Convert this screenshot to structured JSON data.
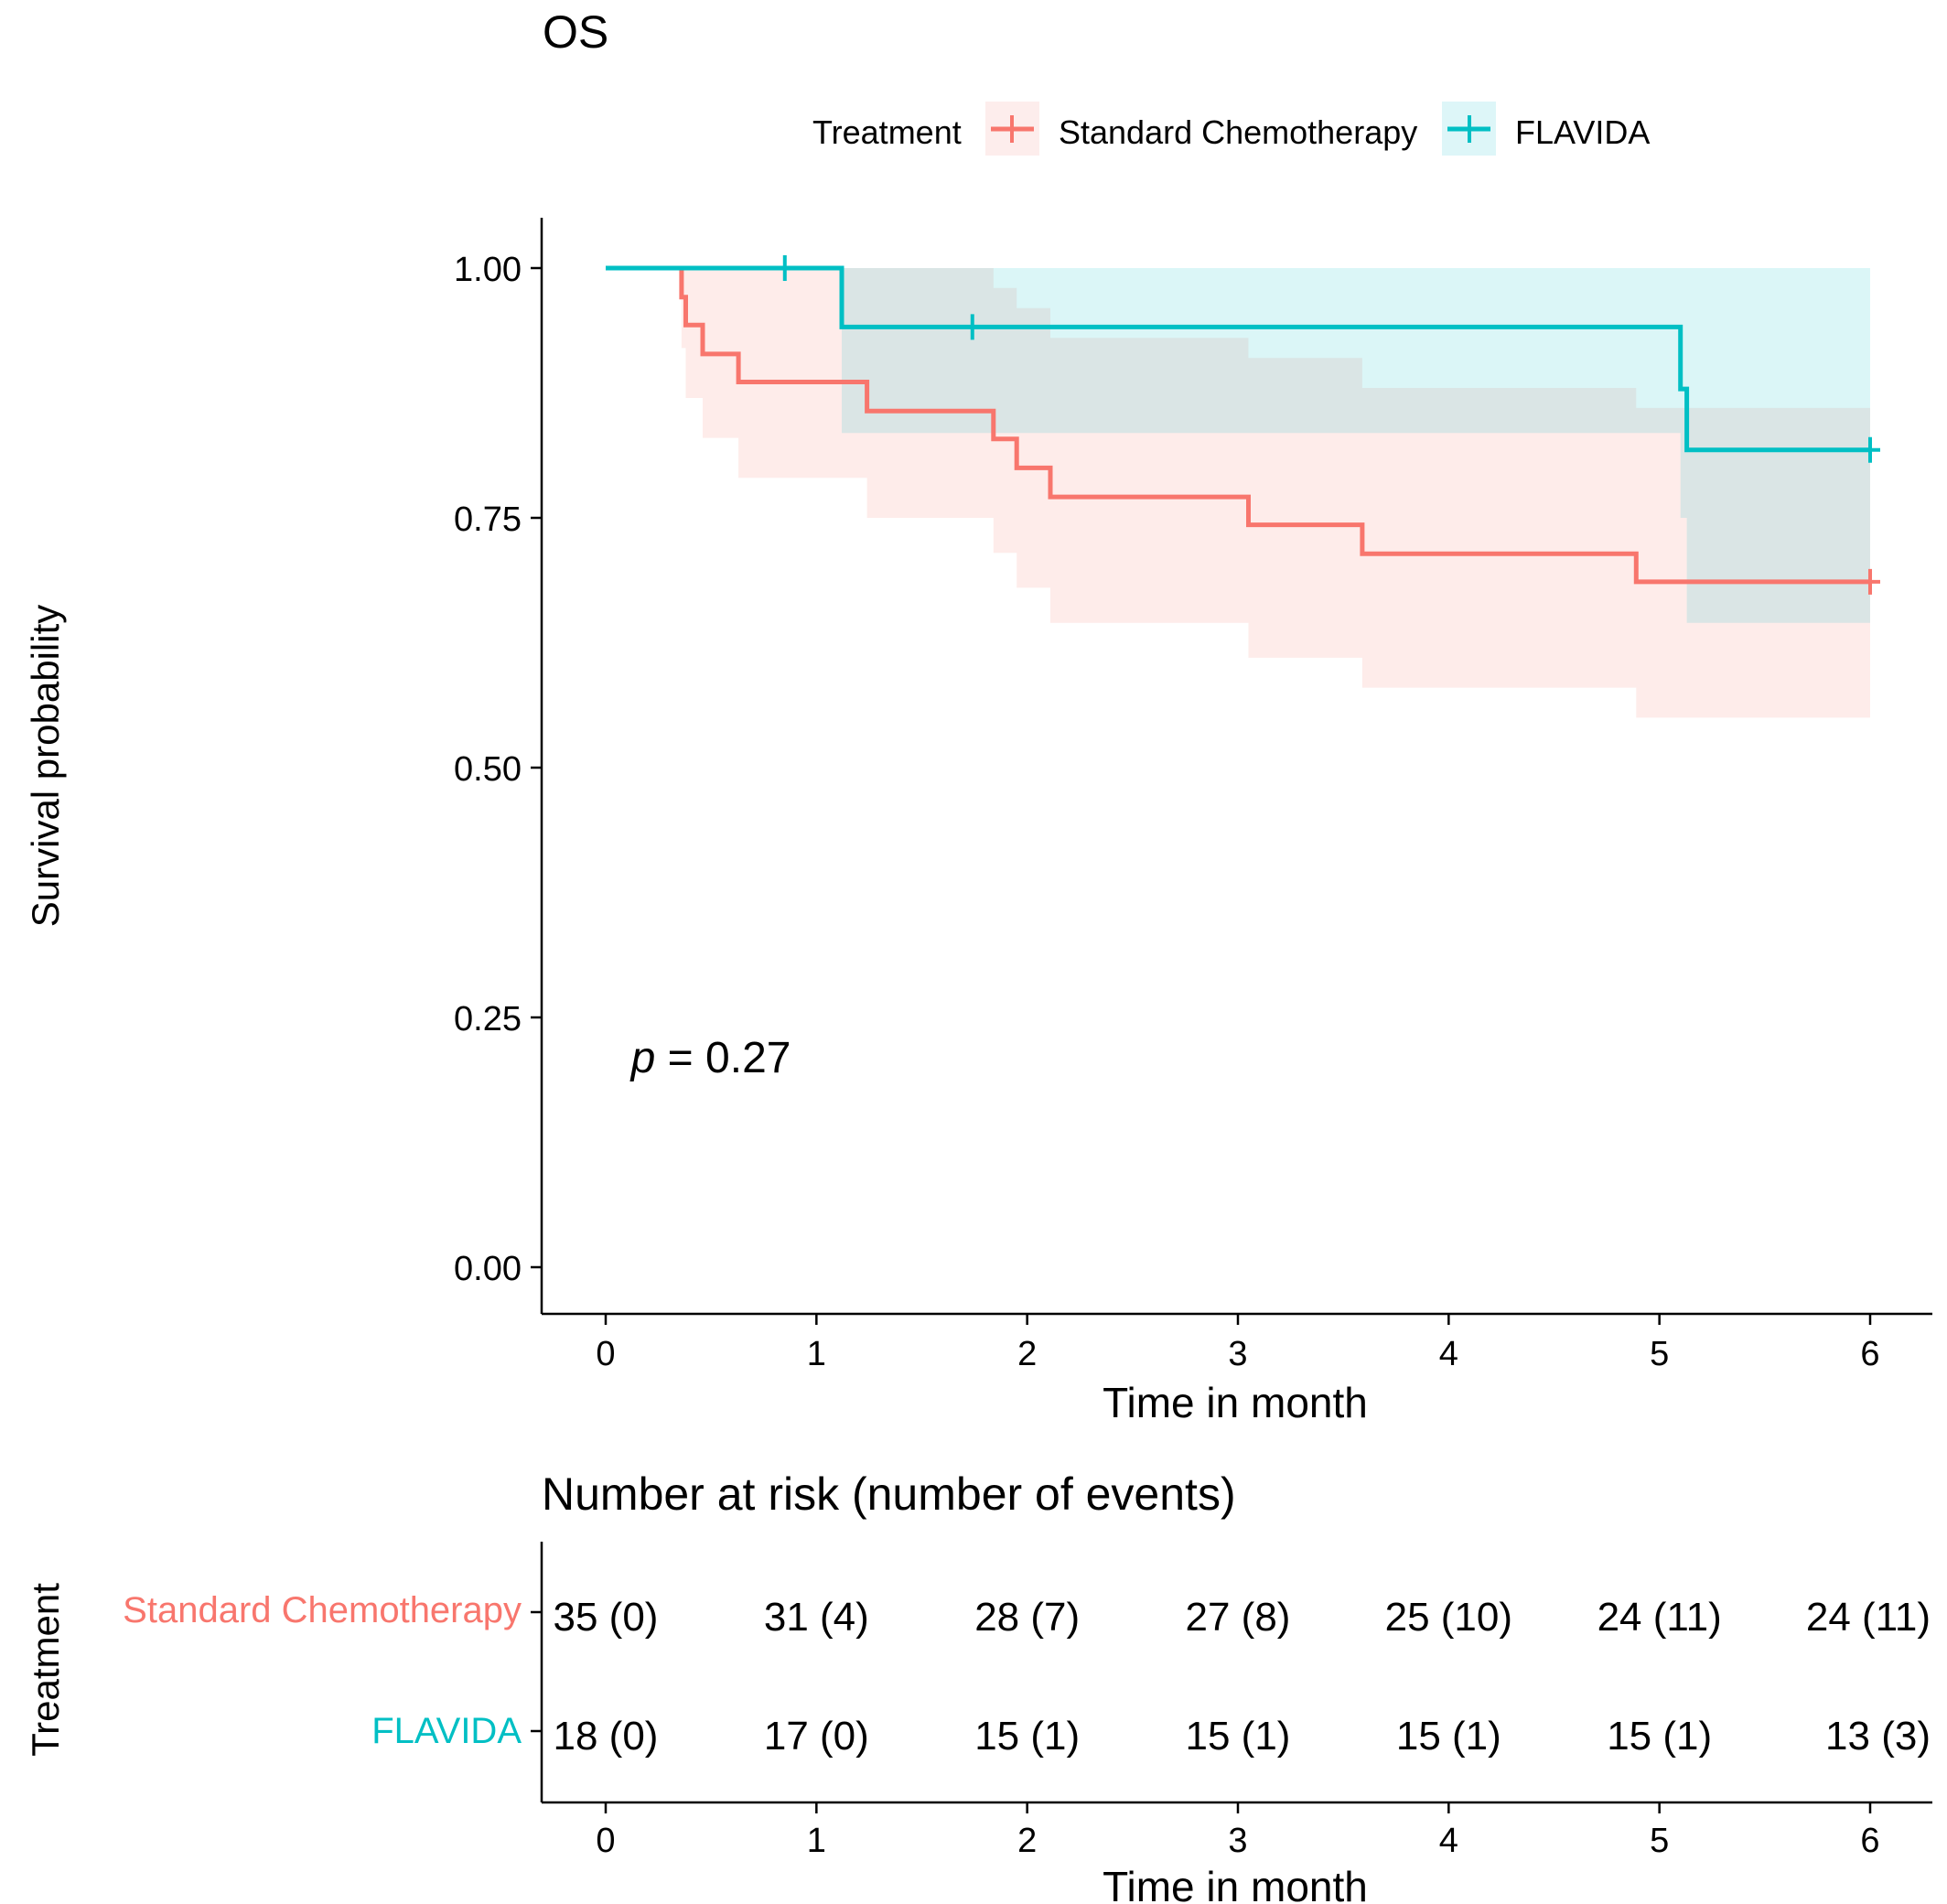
{
  "colors": {
    "standard": "#F8766D",
    "flavida": "#00BFC4",
    "standard_band": "#FDEDEC",
    "flavida_band": "#DDF6F8",
    "overlap_band": "#E5EFEF"
  },
  "chart_data": {
    "type": "line",
    "subtype": "kaplan-meier step",
    "title": "OS",
    "xlabel": "Time in month",
    "ylabel": "Survival probability",
    "xlim": [
      0,
      6
    ],
    "ylim": [
      0,
      1
    ],
    "xticks": [
      "0",
      "1",
      "2",
      "3",
      "4",
      "5",
      "6"
    ],
    "yticks": [
      "0.00",
      "0.25",
      "0.50",
      "0.75",
      "1.00"
    ],
    "grid": false,
    "legend": {
      "title": "Treatment",
      "position": "top",
      "entries": [
        "Standard Chemotherapy",
        "FLAVIDA"
      ]
    },
    "annotation": {
      "italic": "p",
      "rest": " = 0.27",
      "x": 0.12,
      "y": 0.195
    },
    "series": [
      {
        "name": "Standard Chemotherapy",
        "color_key": "standard",
        "steps": [
          [
            0,
            1.0
          ],
          [
            0.36,
            0.971
          ],
          [
            0.38,
            0.943
          ],
          [
            0.46,
            0.914
          ],
          [
            0.63,
            0.886
          ],
          [
            1.24,
            0.857
          ],
          [
            1.84,
            0.829
          ],
          [
            1.95,
            0.8
          ],
          [
            2.11,
            0.771
          ],
          [
            3.05,
            0.743
          ],
          [
            3.59,
            0.714
          ],
          [
            4.89,
            0.686
          ],
          [
            6.0,
            0.686
          ]
        ],
        "upper": [
          [
            0,
            1.0
          ],
          [
            0.36,
            1.0
          ],
          [
            1.24,
            1.0
          ],
          [
            1.84,
            0.98
          ],
          [
            1.95,
            0.96
          ],
          [
            2.11,
            0.93
          ],
          [
            3.05,
            0.91
          ],
          [
            3.59,
            0.88
          ],
          [
            4.89,
            0.86
          ],
          [
            6.0,
            0.86
          ]
        ],
        "lower": [
          [
            0,
            1.0
          ],
          [
            0.36,
            0.92
          ],
          [
            0.38,
            0.87
          ],
          [
            0.46,
            0.83
          ],
          [
            0.63,
            0.79
          ],
          [
            1.24,
            0.75
          ],
          [
            1.84,
            0.715
          ],
          [
            1.95,
            0.68
          ],
          [
            2.11,
            0.645
          ],
          [
            3.05,
            0.61
          ],
          [
            3.59,
            0.58
          ],
          [
            4.89,
            0.55
          ],
          [
            6.0,
            0.55
          ]
        ],
        "censor": [
          [
            6.0,
            0.686
          ]
        ]
      },
      {
        "name": "FLAVIDA",
        "color_key": "flavida",
        "steps": [
          [
            0,
            1.0
          ],
          [
            1.12,
            0.941
          ],
          [
            5.09,
            0.941
          ],
          [
            5.1,
            0.879
          ],
          [
            5.13,
            0.818
          ],
          [
            6.0,
            0.818
          ]
        ],
        "upper": [
          [
            0,
            1.0
          ],
          [
            6.0,
            1.0
          ]
        ],
        "lower": [
          [
            0,
            1.0
          ],
          [
            1.12,
            0.835
          ],
          [
            5.1,
            0.75
          ],
          [
            5.13,
            0.645
          ],
          [
            6.0,
            0.645
          ]
        ],
        "censor": [
          [
            0.85,
            1.0
          ],
          [
            1.74,
            0.941
          ],
          [
            6.0,
            0.818
          ]
        ]
      }
    ]
  },
  "risk_table": {
    "title": "Number at risk (number of events)",
    "ylabel": "Treatment",
    "xlabel": "Time in month",
    "xticks": [
      "0",
      "1",
      "2",
      "3",
      "4",
      "5",
      "6"
    ],
    "rows": [
      {
        "name": "Standard Chemotherapy",
        "color_key": "standard",
        "values": [
          "35 (0)",
          "31 (4)",
          "28 (7)",
          "27 (8)",
          "25 (10)",
          "24 (11)",
          "24 (11)"
        ]
      },
      {
        "name": "FLAVIDA",
        "color_key": "flavida",
        "values": [
          "18 (0)",
          "17 (0)",
          "15 (1)",
          "15 (1)",
          "15 (1)",
          "15 (1)",
          "13 (3)"
        ]
      }
    ]
  }
}
